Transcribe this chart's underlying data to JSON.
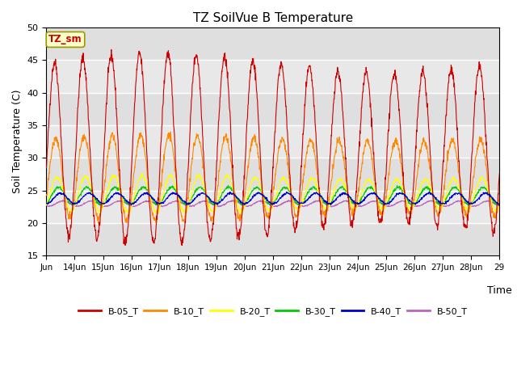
{
  "title": "TZ SoilVue B Temperature",
  "ylabel": "Soil Temperature (C)",
  "xlabel": "Time",
  "ylim": [
    15,
    50
  ],
  "xlim_days": [
    13,
    29
  ],
  "x_tick_labels": [
    "Jun",
    "14Jun",
    "15Jun",
    "16Jun",
    "17Jun",
    "18Jun",
    "19Jun",
    "20Jun",
    "21Jun",
    "22Jun",
    "23Jun",
    "24Jun",
    "25Jun",
    "26Jun",
    "27Jun",
    "28Jun",
    "29"
  ],
  "x_tick_positions": [
    13,
    14,
    15,
    16,
    17,
    18,
    19,
    20,
    21,
    22,
    23,
    24,
    25,
    26,
    27,
    28,
    29
  ],
  "yticks": [
    15,
    20,
    25,
    30,
    35,
    40,
    45,
    50
  ],
  "series_colors": {
    "B-05_T": "#cc0000",
    "B-10_T": "#ff8800",
    "B-20_T": "#ffff00",
    "B-30_T": "#00cc00",
    "B-40_T": "#0000cc",
    "B-50_T": "#bb66bb"
  },
  "annotation_text": "TZ_sm",
  "annotation_color": "#cc0000",
  "annotation_bg": "#ffffcc",
  "annotation_border": "#999900",
  "plot_bg": "#e8e8e8",
  "fig_bg": "#ffffff",
  "grid_color": "#ffffff",
  "n_points_per_day": 96
}
